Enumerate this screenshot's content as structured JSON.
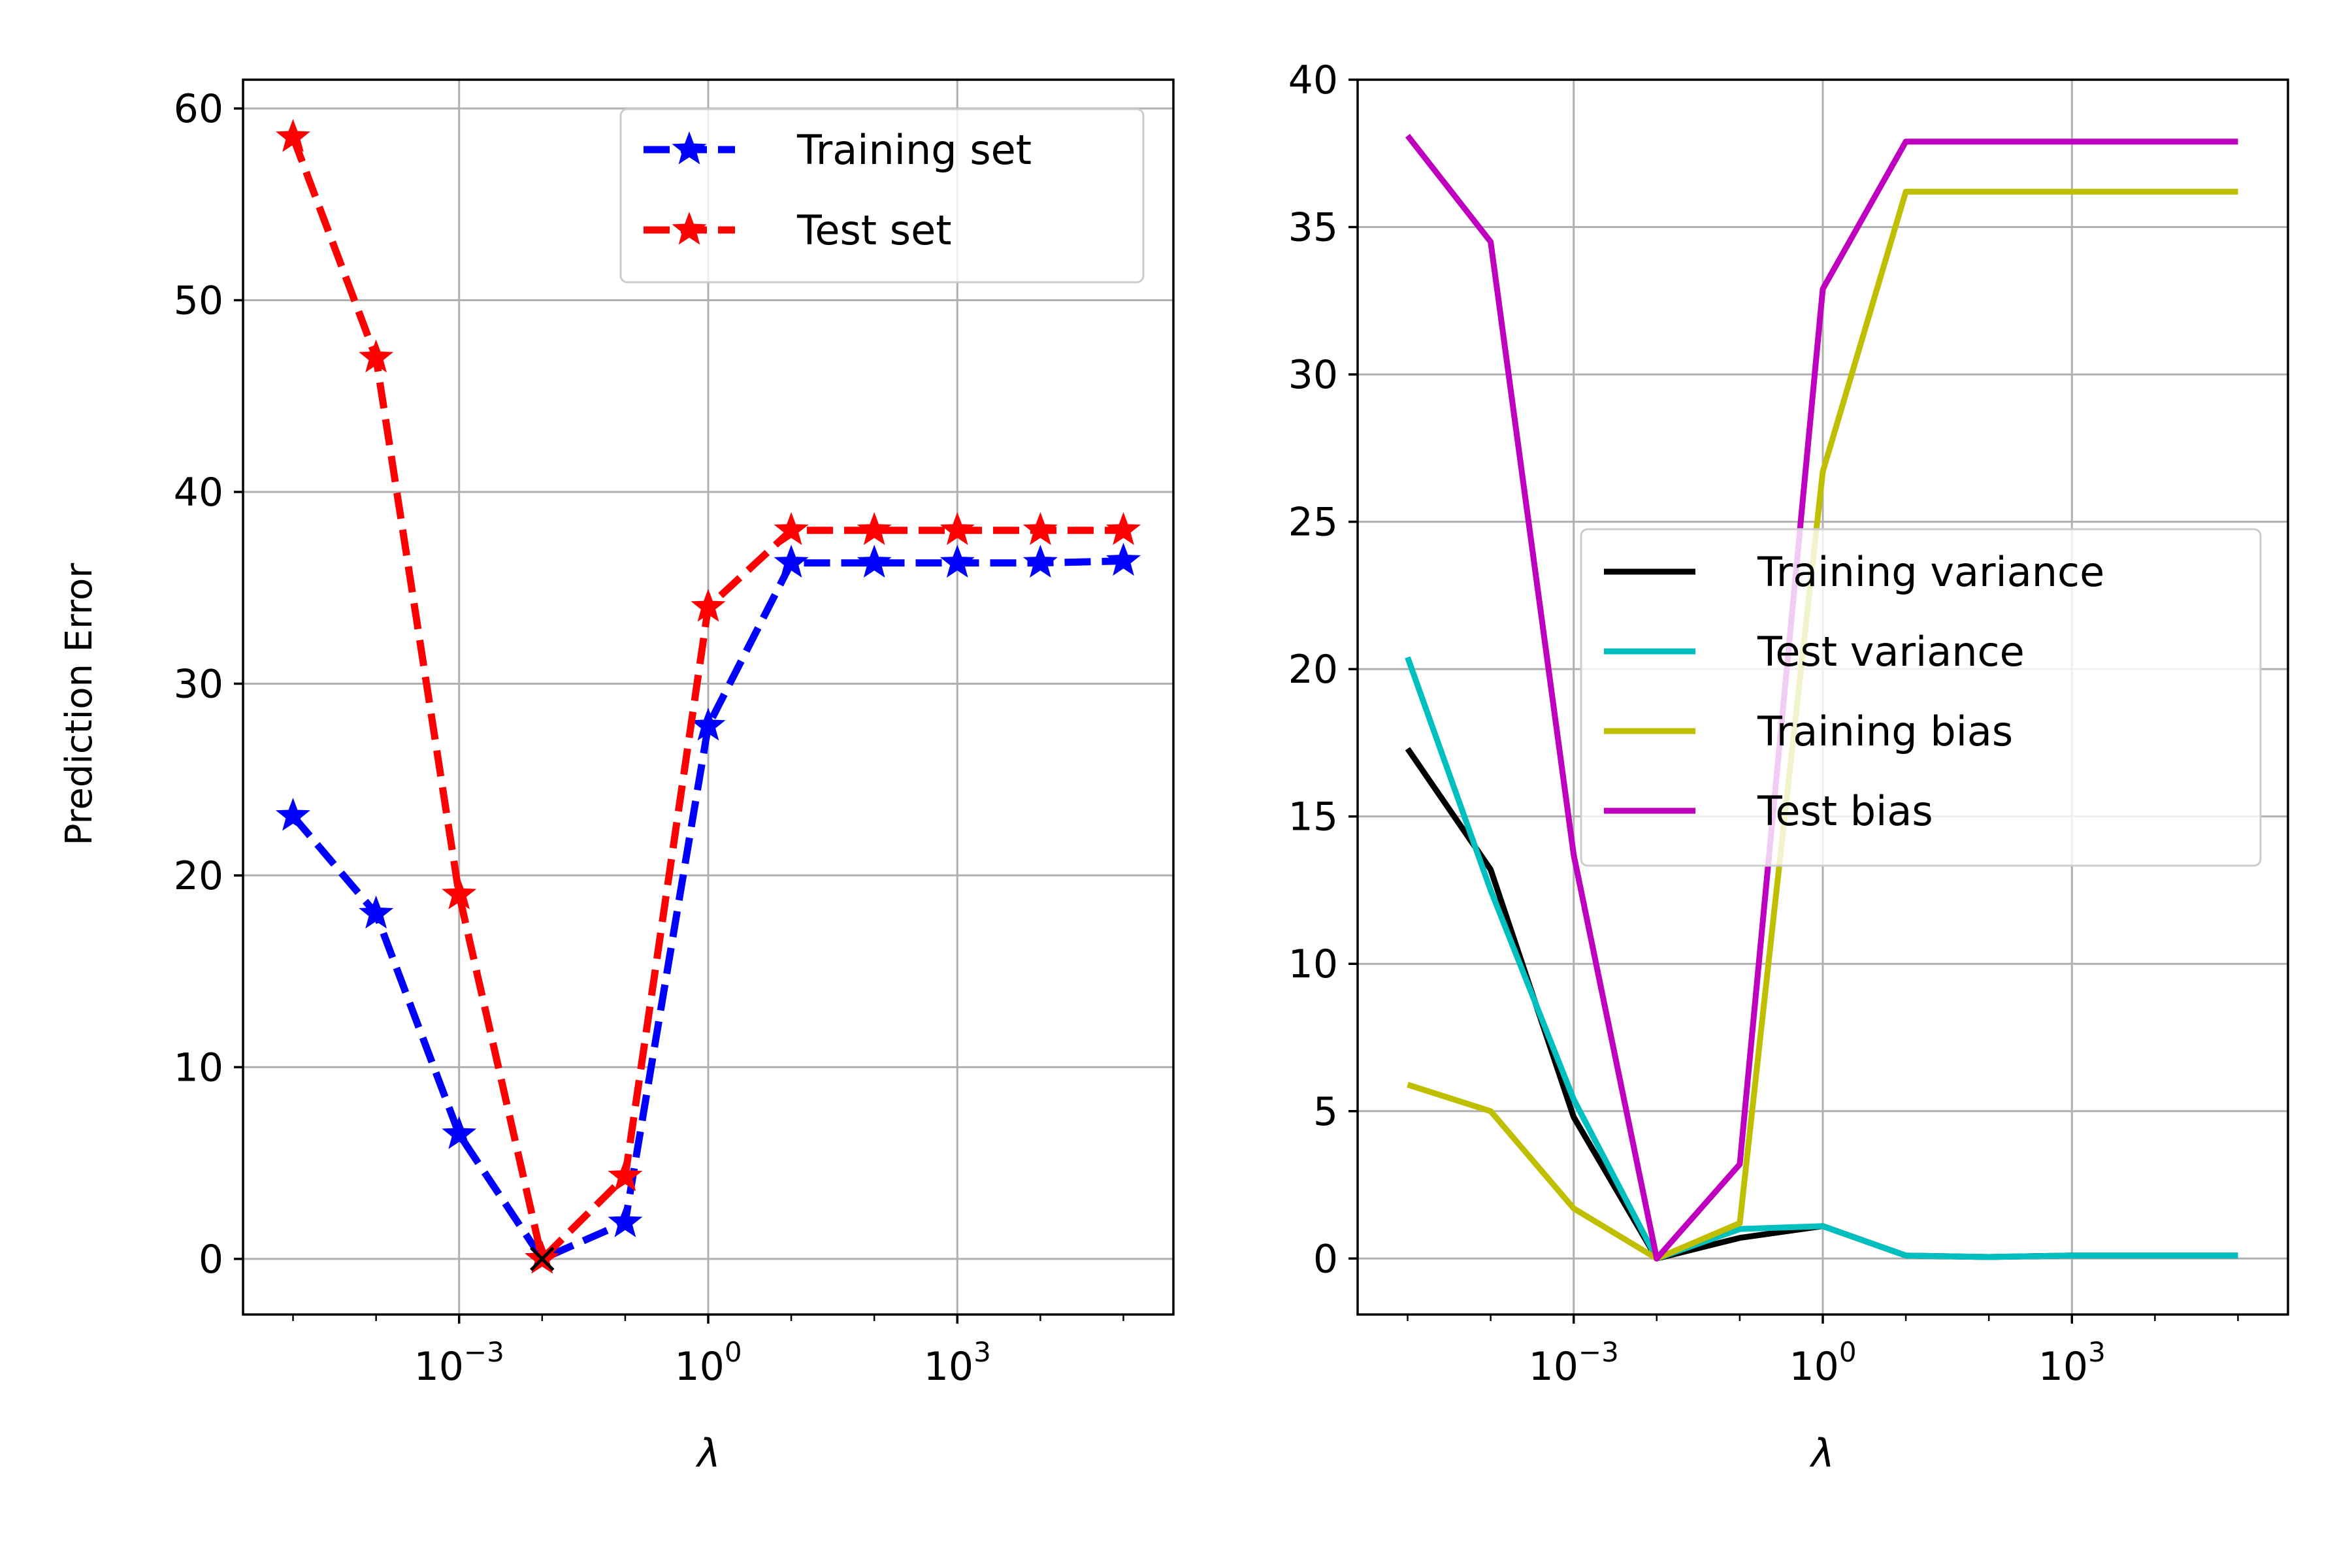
{
  "figure": {
    "panels": [
      "prediction-error",
      "bias-variance"
    ]
  },
  "chart_data": [
    {
      "type": "line",
      "x_scale": "log",
      "x": [
        1e-05,
        0.0001,
        0.001,
        0.01,
        0.1,
        1,
        10,
        100,
        1000,
        10000,
        100000
      ],
      "xlabel": "λ",
      "ylabel": "Prediction Error",
      "xlim": [
        2.5e-06,
        400000
      ],
      "ylim": [
        -2.9,
        61.5
      ],
      "x_ticks": [
        {
          "value": 0.001,
          "base": "10",
          "exp": "−3"
        },
        {
          "value": 1,
          "base": "10",
          "exp": "0"
        },
        {
          "value": 1000,
          "base": "10",
          "exp": "3"
        }
      ],
      "y_ticks": [
        0,
        10,
        20,
        30,
        40,
        50,
        60
      ],
      "grid": true,
      "legend": "top-right",
      "series": [
        {
          "name": "Training set",
          "color": "#0000ff",
          "style": "dashed",
          "marker": "star",
          "values": [
            23.1,
            18.0,
            6.5,
            0.0,
            1.9,
            27.8,
            36.3,
            36.3,
            36.3,
            36.3,
            36.4
          ]
        },
        {
          "name": "Test set",
          "color": "#ff0000",
          "style": "dashed",
          "marker": "star",
          "values": [
            58.5,
            47.0,
            19.0,
            0.0,
            4.3,
            34.0,
            38.0,
            38.0,
            38.0,
            38.0,
            38.0
          ]
        }
      ],
      "annotation": {
        "x": 0.01,
        "y": 0.0,
        "marker": "x",
        "color": "#000000"
      }
    },
    {
      "type": "line",
      "x_scale": "log",
      "x": [
        1e-05,
        0.0001,
        0.001,
        0.01,
        0.1,
        1,
        10,
        100,
        1000,
        10000,
        100000
      ],
      "xlabel": "λ",
      "ylabel": "",
      "xlim": [
        2.5e-06,
        400000
      ],
      "ylim": [
        -1.9,
        40
      ],
      "x_ticks": [
        {
          "value": 0.001,
          "base": "10",
          "exp": "−3"
        },
        {
          "value": 1,
          "base": "10",
          "exp": "0"
        },
        {
          "value": 1000,
          "base": "10",
          "exp": "3"
        }
      ],
      "y_ticks": [
        0,
        5,
        10,
        15,
        20,
        25,
        30,
        35,
        40
      ],
      "grid": true,
      "legend": "center-right",
      "series": [
        {
          "name": "Training variance",
          "color": "#000000",
          "style": "solid",
          "values": [
            17.3,
            13.2,
            4.8,
            0.0,
            0.7,
            1.1,
            0.1,
            0.05,
            0.1,
            0.1,
            0.1
          ]
        },
        {
          "name": "Test variance",
          "color": "#00bfbf",
          "style": "solid",
          "values": [
            20.4,
            12.5,
            5.4,
            0.0,
            1.0,
            1.1,
            0.1,
            0.05,
            0.1,
            0.1,
            0.1
          ]
        },
        {
          "name": "Training bias",
          "color": "#bfbf00",
          "style": "solid",
          "values": [
            5.9,
            5.0,
            1.7,
            0.0,
            1.2,
            26.7,
            36.2,
            36.2,
            36.2,
            36.2,
            36.2
          ]
        },
        {
          "name": "Test bias",
          "color": "#bf00bf",
          "style": "solid",
          "values": [
            38.1,
            34.5,
            13.7,
            0.0,
            3.2,
            32.9,
            37.9,
            37.9,
            37.9,
            37.9,
            37.9
          ]
        }
      ]
    }
  ]
}
